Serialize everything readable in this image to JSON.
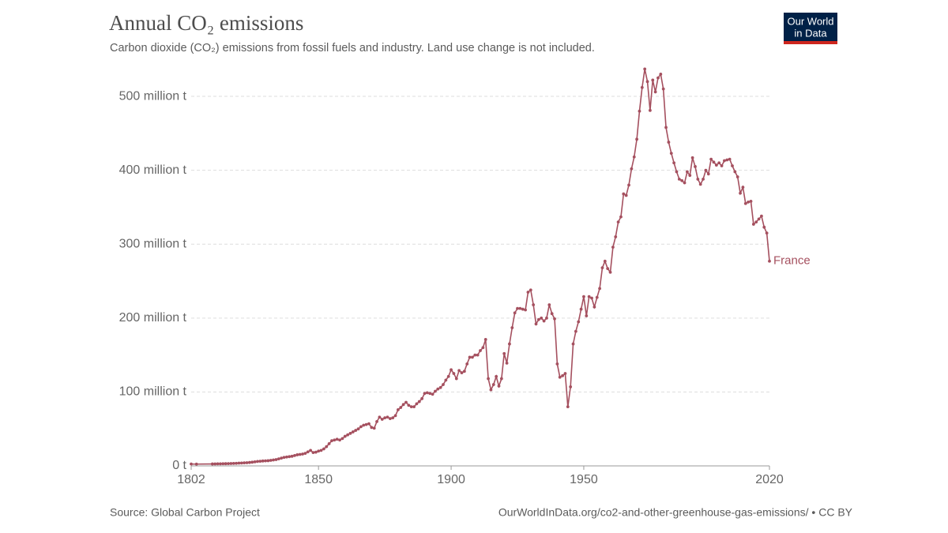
{
  "chart_data": {
    "type": "line",
    "title": "Annual CO₂ emissions",
    "subtitle": "Carbon dioxide (CO₂) emissions from fossil fuels and industry. Land use change is not included.",
    "logo": [
      "Our World",
      "in Data"
    ],
    "source": "Source: Global Carbon Project",
    "url": "OurWorldInData.org/co2-and-other-greenhouse-gas-emissions/ • CC BY",
    "x": [
      1802,
      1804,
      1810,
      1811,
      1812,
      1813,
      1814,
      1815,
      1816,
      1817,
      1818,
      1819,
      1820,
      1821,
      1822,
      1823,
      1824,
      1825,
      1826,
      1827,
      1828,
      1829,
      1830,
      1831,
      1832,
      1833,
      1834,
      1835,
      1836,
      1837,
      1838,
      1839,
      1840,
      1841,
      1842,
      1843,
      1844,
      1845,
      1846,
      1847,
      1848,
      1849,
      1850,
      1851,
      1852,
      1853,
      1854,
      1855,
      1856,
      1857,
      1858,
      1859,
      1860,
      1861,
      1862,
      1863,
      1864,
      1865,
      1866,
      1867,
      1868,
      1869,
      1870,
      1871,
      1872,
      1873,
      1874,
      1875,
      1876,
      1877,
      1878,
      1879,
      1880,
      1881,
      1882,
      1883,
      1884,
      1885,
      1886,
      1887,
      1888,
      1889,
      1890,
      1891,
      1892,
      1893,
      1894,
      1895,
      1896,
      1897,
      1898,
      1899,
      1900,
      1901,
      1902,
      1903,
      1904,
      1905,
      1906,
      1907,
      1908,
      1909,
      1910,
      1911,
      1912,
      1913,
      1914,
      1915,
      1916,
      1917,
      1918,
      1919,
      1920,
      1921,
      1922,
      1923,
      1924,
      1925,
      1926,
      1927,
      1928,
      1929,
      1930,
      1931,
      1932,
      1933,
      1934,
      1935,
      1936,
      1937,
      1938,
      1939,
      1940,
      1941,
      1942,
      1943,
      1944,
      1945,
      1946,
      1947,
      1948,
      1949,
      1950,
      1951,
      1952,
      1953,
      1954,
      1955,
      1956,
      1957,
      1958,
      1959,
      1960,
      1961,
      1962,
      1963,
      1964,
      1965,
      1966,
      1967,
      1968,
      1969,
      1970,
      1971,
      1972,
      1973,
      1974,
      1975,
      1976,
      1977,
      1978,
      1979,
      1980,
      1981,
      1982,
      1983,
      1984,
      1985,
      1986,
      1987,
      1988,
      1989,
      1990,
      1991,
      1992,
      1993,
      1994,
      1995,
      1996,
      1997,
      1998,
      1999,
      2000,
      2001,
      2002,
      2003,
      2004,
      2005,
      2006,
      2007,
      2008,
      2009,
      2010,
      2011,
      2012,
      2013,
      2014,
      2015,
      2016,
      2017,
      2018,
      2019,
      2020
    ],
    "series": [
      {
        "name": "France",
        "color": "#a5505f",
        "values": [
          2.5,
          2.4,
          2.6,
          2.7,
          2.8,
          2.8,
          2.9,
          3.0,
          3.1,
          3.2,
          3.3,
          3.5,
          3.7,
          3.9,
          4.1,
          4.3,
          4.6,
          5.0,
          5.5,
          6.0,
          6.3,
          6.6,
          6.8,
          7,
          7.5,
          8,
          8.5,
          9.5,
          10.5,
          11.5,
          12,
          12.5,
          13,
          14,
          15,
          15.5,
          16,
          17,
          19,
          21,
          18,
          18.5,
          20,
          21,
          23,
          26,
          30,
          34,
          35,
          36,
          35,
          37,
          40,
          42,
          44,
          46,
          48,
          50,
          53,
          55,
          56,
          57,
          52,
          51,
          60,
          66,
          63,
          65,
          66,
          64,
          65,
          68,
          76,
          79,
          83,
          86,
          82,
          80,
          80,
          84,
          87,
          91,
          98,
          99,
          98,
          97,
          101,
          104,
          106,
          110,
          116,
          121,
          130,
          125,
          118,
          129,
          126,
          128,
          138,
          147,
          147,
          150,
          150,
          156,
          160,
          171,
          118,
          103,
          110,
          121,
          108,
          118,
          152,
          139,
          165,
          187,
          207,
          213,
          213,
          212,
          211,
          235,
          238,
          218,
          192,
          198,
          200,
          196,
          200,
          218,
          206,
          199,
          138,
          120,
          122,
          125,
          80,
          107,
          165,
          182,
          195,
          212,
          229,
          203,
          229,
          227,
          215,
          228,
          240,
          268,
          277,
          267,
          262,
          296,
          310,
          330,
          337,
          368,
          366,
          380,
          402,
          418,
          442,
          480,
          512,
          537,
          520,
          481,
          522,
          506,
          525,
          530,
          510,
          458,
          438,
          423,
          410,
          398,
          388,
          386,
          383,
          398,
          393,
          417,
          405,
          388,
          381,
          388,
          400,
          395,
          415,
          411,
          407,
          410,
          406,
          413,
          414,
          415,
          406,
          398,
          391,
          369,
          377,
          355,
          357,
          358,
          327,
          330,
          334,
          338,
          323,
          315,
          277
        ]
      }
    ],
    "xlim": [
      1802,
      2020
    ],
    "xticks": [
      1802,
      1850,
      1900,
      1950,
      2020
    ],
    "ylim": [
      0,
      540
    ],
    "yticks": [
      {
        "value": 0,
        "label": "0 t"
      },
      {
        "value": 100,
        "label": "100 million t"
      },
      {
        "value": 200,
        "label": "200 million t"
      },
      {
        "value": 300,
        "label": "300 million t"
      },
      {
        "value": 400,
        "label": "400 million t"
      },
      {
        "value": 500,
        "label": "500 million t"
      }
    ],
    "grid": true
  }
}
